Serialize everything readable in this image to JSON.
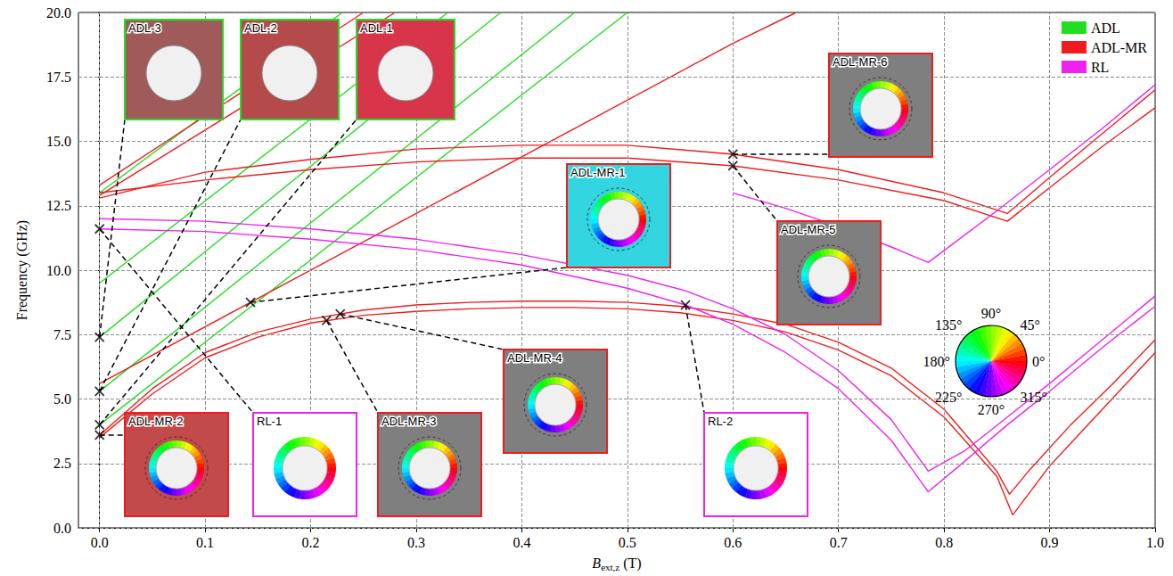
{
  "chart_data": {
    "type": "line",
    "x_label": {
      "symbol": "B",
      "subscript": "ext,z",
      "unit": "(T)"
    },
    "y_label": "Frequency (GHz)",
    "xlim": [
      -0.02,
      1.0
    ],
    "ylim": [
      0,
      20
    ],
    "xticks": [
      {
        "value": 0,
        "label": "0.0"
      },
      0.1,
      0.2,
      0.3,
      0.4,
      0.5,
      0.6,
      0.7,
      0.8,
      0.9,
      {
        "value": 1,
        "label": "1.0"
      }
    ],
    "yticks": [
      {
        "value": 0,
        "label": "0.0"
      },
      2.5,
      {
        "value": 5,
        "label": "5.0"
      },
      7.5,
      {
        "value": 10,
        "label": "10.0"
      },
      12.5,
      {
        "value": 15,
        "label": "15.0"
      },
      17.5,
      {
        "value": 20,
        "label": "20.0"
      }
    ],
    "grid": true,
    "legend": "upper right",
    "series": [
      {
        "name": "ADL",
        "color": "#22dd22",
        "x": [
          0,
          0.5
        ],
        "values": [
          4.0,
          20
        ]
      },
      {
        "name": "ADL",
        "color": "#22dd22",
        "x": [
          0,
          0.45
        ],
        "values": [
          5.3,
          20
        ]
      },
      {
        "name": "ADL",
        "color": "#22dd22",
        "x": [
          0,
          0.38
        ],
        "values": [
          7.4,
          20
        ]
      },
      {
        "name": "ADL",
        "color": "#22dd22",
        "x": [
          0,
          0.33
        ],
        "values": [
          9.5,
          20
        ]
      },
      {
        "name": "ADL",
        "color": "#22dd22",
        "x": [
          0,
          0.23
        ],
        "values": [
          13.0,
          20
        ]
      },
      {
        "name": "ADL-MR",
        "color": "#ee1c1c",
        "x": [
          0,
          0.05,
          0.1,
          0.15,
          0.2,
          0.25,
          0.3,
          0.35,
          0.4,
          0.45,
          0.5,
          0.55,
          0.6,
          0.65,
          0.7,
          0.75,
          0.8,
          0.85,
          0.862,
          0.88,
          0.92,
          0.96,
          1.0
        ],
        "values": [
          3.6,
          5.4,
          6.8,
          7.6,
          8.1,
          8.45,
          8.65,
          8.75,
          8.8,
          8.8,
          8.75,
          8.6,
          8.3,
          7.9,
          7.2,
          6.2,
          4.6,
          2.2,
          1.3,
          2.2,
          4.0,
          5.6,
          7.3
        ]
      },
      {
        "name": "ADL-MR",
        "color": "#ee1c1c",
        "x": [
          0,
          0.05,
          0.1,
          0.15,
          0.2,
          0.25,
          0.3,
          0.35,
          0.4,
          0.45,
          0.5,
          0.55,
          0.6,
          0.65,
          0.7,
          0.75,
          0.8,
          0.85,
          0.865,
          0.9,
          0.95,
          1.0
        ],
        "values": [
          3.5,
          5.2,
          6.6,
          7.4,
          7.95,
          8.25,
          8.4,
          8.5,
          8.55,
          8.55,
          8.5,
          8.35,
          8.05,
          7.6,
          6.9,
          5.9,
          4.3,
          2.0,
          0.5,
          2.4,
          4.6,
          6.8
        ]
      },
      {
        "name": "ADL-MR",
        "color": "#ee1c1c",
        "x": [
          0,
          0.1,
          0.2,
          0.3,
          0.4,
          0.5,
          0.6,
          0.7,
          0.8,
          0.86,
          0.9,
          0.95,
          1.0
        ],
        "values": [
          13.0,
          13.5,
          13.9,
          14.2,
          14.35,
          14.35,
          14.05,
          13.5,
          12.7,
          11.9,
          13.2,
          14.8,
          16.3
        ]
      },
      {
        "name": "ADL-MR",
        "color": "#ee1c1c",
        "x": [
          0,
          0.1,
          0.2,
          0.3,
          0.4,
          0.5,
          0.6,
          0.7,
          0.8,
          0.86,
          0.9,
          0.95,
          1.0
        ],
        "values": [
          12.8,
          13.8,
          14.3,
          14.7,
          14.85,
          14.85,
          14.5,
          13.9,
          13.0,
          12.2,
          13.6,
          15.3,
          17.0
        ]
      },
      {
        "name": "ADL-MR",
        "color": "#ee1c1c",
        "x": [
          0,
          0.143,
          0.3,
          0.45,
          0.6,
          0.66
        ],
        "values": [
          5.6,
          8.75,
          12.2,
          15.5,
          18.8,
          20
        ]
      },
      {
        "name": "ADL-MR",
        "color": "#ee1c1c",
        "x": [
          0,
          0.28
        ],
        "values": [
          12.9,
          20
        ]
      },
      {
        "name": "ADL-MR",
        "color": "#ee1c1c",
        "x": [
          0,
          0.25
        ],
        "values": [
          13.3,
          20
        ]
      },
      {
        "name": "RL",
        "color": "#ee22ee",
        "x": [
          0,
          0.1,
          0.2,
          0.3,
          0.4,
          0.5,
          0.555,
          0.6,
          0.65,
          0.7,
          0.75,
          0.785,
          0.82,
          0.86,
          0.9,
          0.95,
          1.0
        ],
        "values": [
          11.6,
          11.5,
          11.2,
          10.8,
          10.2,
          9.3,
          8.65,
          7.9,
          6.8,
          5.4,
          3.4,
          1.4,
          2.6,
          4.0,
          5.3,
          7.0,
          8.6
        ]
      },
      {
        "name": "RL",
        "color": "#ee22ee",
        "x": [
          0,
          0.1,
          0.2,
          0.3,
          0.4,
          0.5,
          0.555,
          0.6,
          0.65,
          0.7,
          0.75,
          0.785,
          0.82,
          0.86,
          0.9,
          0.95,
          1.0
        ],
        "values": [
          12.0,
          11.9,
          11.6,
          11.2,
          10.6,
          9.8,
          9.2,
          8.5,
          7.5,
          6.1,
          4.2,
          2.2,
          3.0,
          4.3,
          5.6,
          7.3,
          9.0
        ]
      },
      {
        "name": "RL",
        "color": "#ee22ee",
        "x": [
          0.6,
          0.65,
          0.7,
          0.75,
          0.785,
          0.85,
          0.9,
          0.95,
          1.0
        ],
        "values": [
          13.0,
          12.4,
          11.7,
          10.9,
          10.3,
          12.3,
          13.9,
          15.5,
          17.2
        ]
      }
    ],
    "annotations": [
      {
        "label": "ADL-3",
        "family": "ADL",
        "x": 0,
        "y": 7.4
      },
      {
        "label": "ADL-2",
        "family": "ADL",
        "x": 0,
        "y": 5.3
      },
      {
        "label": "ADL-1",
        "family": "ADL",
        "x": 0,
        "y": 4.0
      },
      {
        "label": "ADL-MR-6",
        "family": "ADL-MR",
        "x": 0.6,
        "y": 14.5
      },
      {
        "label": "ADL-MR-1",
        "family": "ADL-MR",
        "x": 0.143,
        "y": 8.75
      },
      {
        "label": "ADL-MR-5",
        "family": "ADL-MR",
        "x": 0.6,
        "y": 14.05
      },
      {
        "label": "ADL-MR-4",
        "family": "ADL-MR",
        "x": 0.228,
        "y": 8.3
      },
      {
        "label": "ADL-MR-2",
        "family": "ADL-MR",
        "x": 0,
        "y": 3.6
      },
      {
        "label": "RL-1",
        "family": "RL",
        "x": 0,
        "y": 11.6
      },
      {
        "label": "ADL-MR-3",
        "family": "ADL-MR",
        "x": 0.215,
        "y": 8.05
      },
      {
        "label": "RL-2",
        "family": "RL",
        "x": 0.555,
        "y": 8.65
      }
    ],
    "color_wheel": {
      "labels": [
        {
          "value": 0,
          "label": "0°"
        },
        {
          "value": 45,
          "label": "45°"
        },
        {
          "value": 90,
          "label": "90°"
        },
        {
          "value": 135,
          "label": "135°"
        },
        {
          "value": 180,
          "label": "180°"
        },
        {
          "value": 225,
          "label": "225°"
        },
        {
          "value": 270,
          "label": "270°"
        },
        {
          "value": 315,
          "label": "315°"
        }
      ]
    }
  }
}
